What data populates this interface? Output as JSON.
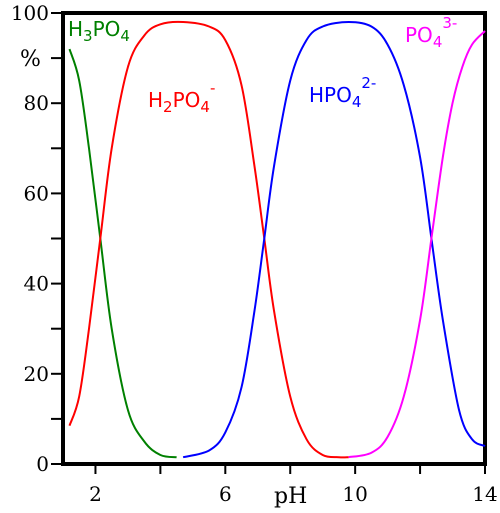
{
  "chart_data": {
    "type": "line",
    "xlabel": "pH",
    "ylabel": "%",
    "xlim": [
      1,
      14
    ],
    "ylim": [
      0,
      100
    ],
    "xticks": [
      2,
      4,
      6,
      8,
      10,
      12,
      14
    ],
    "xtick_labels": [
      "2",
      "",
      "6",
      "",
      "10",
      "",
      "14"
    ],
    "yticks": [
      0,
      10,
      20,
      30,
      40,
      50,
      60,
      70,
      80,
      90,
      100
    ],
    "ytick_labels": [
      "0",
      "",
      "20",
      "",
      "40",
      "",
      "60",
      "",
      "80",
      "",
      "100"
    ],
    "grid": false,
    "series": [
      {
        "name": "H3PO4",
        "label_base": "H",
        "label_sub1": "3",
        "label_mid": "PO",
        "label_sub2": "4",
        "label_sup": "",
        "color": "#008000",
        "x": [
          1.2,
          1.5,
          1.8,
          2.15,
          2.5,
          3.0,
          3.5,
          4.0,
          4.5
        ],
        "values": [
          92,
          85,
          70,
          50,
          30,
          12,
          5,
          2,
          1.5
        ]
      },
      {
        "name": "H2PO4-",
        "label_base": "H",
        "label_sub1": "2",
        "label_mid": "PO",
        "label_sub2": "4",
        "label_sup": "-",
        "color": "#ff0000",
        "x": [
          1.2,
          1.5,
          1.8,
          2.15,
          2.5,
          3.0,
          3.5,
          4.0,
          4.7,
          5.5,
          6.0,
          6.5,
          6.9,
          7.2,
          7.5,
          8.0,
          8.5,
          9.0,
          9.5,
          9.8
        ],
        "values": [
          8.5,
          15,
          30,
          50,
          70,
          88,
          95,
          97.5,
          98,
          97,
          94,
          84,
          66,
          50,
          34,
          15,
          5.5,
          2,
          1.5,
          1.5
        ]
      },
      {
        "name": "HPO42-",
        "label_base": "",
        "label_sub1": "",
        "label_mid": "HPO",
        "label_sub2": "4",
        "label_sup": "2-",
        "color": "#0000ff",
        "x": [
          4.7,
          5.5,
          6.0,
          6.5,
          6.9,
          7.2,
          7.5,
          8.0,
          8.5,
          9.0,
          9.8,
          10.5,
          11.0,
          11.5,
          12.0,
          12.35,
          12.7,
          13.2,
          13.6,
          14.0
        ],
        "values": [
          1.5,
          3,
          7,
          17,
          34,
          50,
          66,
          85,
          94,
          97,
          98,
          97,
          93,
          84,
          68,
          50,
          32,
          12,
          5.5,
          4
        ]
      },
      {
        "name": "PO43-",
        "label_base": "",
        "label_sub1": "",
        "label_mid": "PO",
        "label_sub2": "4",
        "label_sup": "3-",
        "color": "#ff00ff",
        "x": [
          9.8,
          10.5,
          11.0,
          11.5,
          12.0,
          12.35,
          12.7,
          13.0,
          13.3,
          13.6,
          14.0
        ],
        "values": [
          1.5,
          2.5,
          6,
          15,
          32,
          50,
          68,
          80,
          88,
          93,
          96
        ]
      }
    ]
  }
}
